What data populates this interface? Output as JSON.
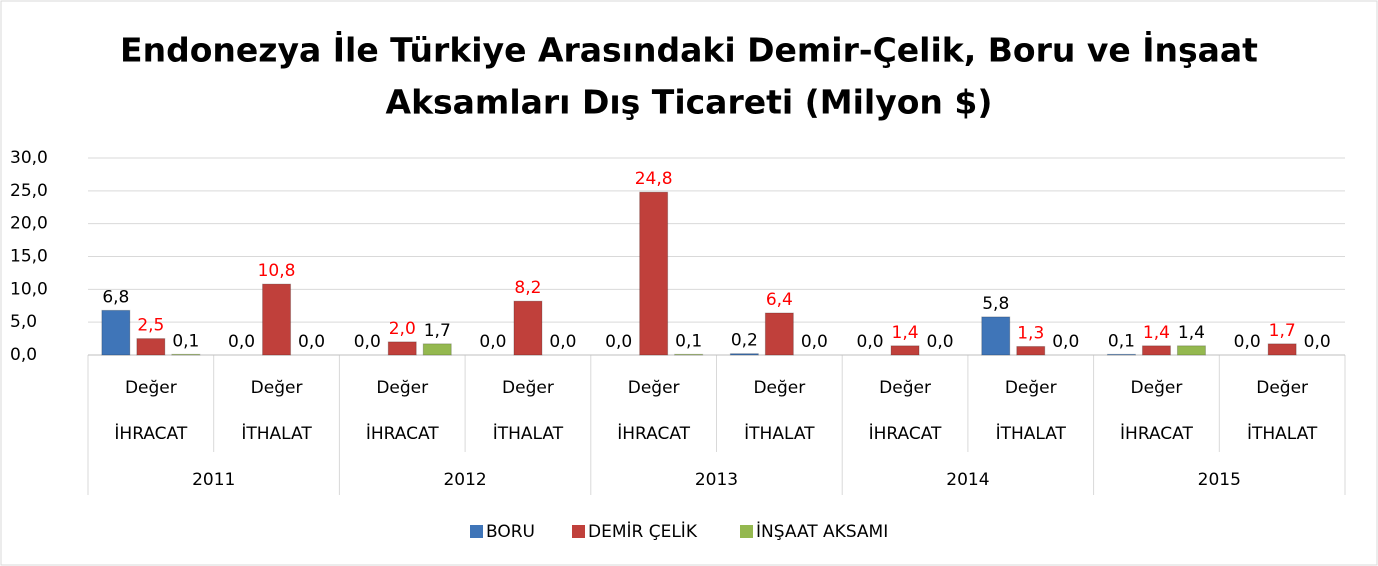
{
  "chart_data": {
    "type": "bar",
    "title": [
      "Endonezya İle Türkiye Arasındaki Demir-Çelik, Boru ve İnşaat",
      "Aksamları Dış Ticareti (Milyon $)"
    ],
    "categories": [
      "Değer",
      "Değer",
      "Değer",
      "Değer",
      "Değer",
      "Değer",
      "Değer",
      "Değer",
      "Değer",
      "Değer"
    ],
    "category_groups": [
      "İHRACAT",
      "İTHALAT",
      "İHRACAT",
      "İTHALAT",
      "İHRACAT",
      "İTHALAT",
      "İHRACAT",
      "İTHALAT",
      "İHRACAT",
      "İTHALAT"
    ],
    "years": [
      "2011",
      "2012",
      "2013",
      "2014",
      "2015"
    ],
    "series": [
      {
        "name": "BORU",
        "color": "#3f75b8",
        "label_color": "#000000",
        "values": [
          6.8,
          0.0,
          0.0,
          0.0,
          0.0,
          0.2,
          0.0,
          5.8,
          0.1,
          0.0
        ],
        "value_labels": [
          "6,8",
          "0,0",
          "0,0",
          "0,0",
          "0,0",
          "0,2",
          "0,0",
          "5,8",
          "0,1",
          "0,0"
        ]
      },
      {
        "name": "DEMİR ÇELİK",
        "color": "#c0403b",
        "label_color": "#ff0000",
        "values": [
          2.5,
          10.8,
          2.0,
          8.2,
          24.8,
          6.4,
          1.4,
          1.3,
          1.4,
          1.7
        ],
        "value_labels": [
          "2,5",
          "10,8",
          "2,0",
          "8,2",
          "24,8",
          "6,4",
          "1,4",
          "1,3",
          "1,4",
          "1,7"
        ]
      },
      {
        "name": "İNŞAAT AKSAMI",
        "color": "#94b84f",
        "label_color": "#000000",
        "values": [
          0.1,
          0.0,
          1.7,
          0.0,
          0.1,
          0.0,
          0.0,
          0.0,
          1.4,
          0.0
        ],
        "value_labels": [
          "0,1",
          "0,0",
          "1,7",
          "0,0",
          "0,1",
          "0,0",
          "0,0",
          "0,0",
          "1,4",
          "0,0"
        ]
      }
    ],
    "ylim": [
      0,
      30
    ],
    "yticks": [
      {
        "value": 0,
        "label": "0,0"
      },
      {
        "value": 5,
        "label": "5,0"
      },
      {
        "value": 10,
        "label": "10,0"
      },
      {
        "value": 15,
        "label": "15,0"
      },
      {
        "value": 20,
        "label": "20,0"
      },
      {
        "value": 25,
        "label": "25,0"
      },
      {
        "value": 30,
        "label": "30,0"
      }
    ],
    "grid": true,
    "legend": "bottom"
  }
}
